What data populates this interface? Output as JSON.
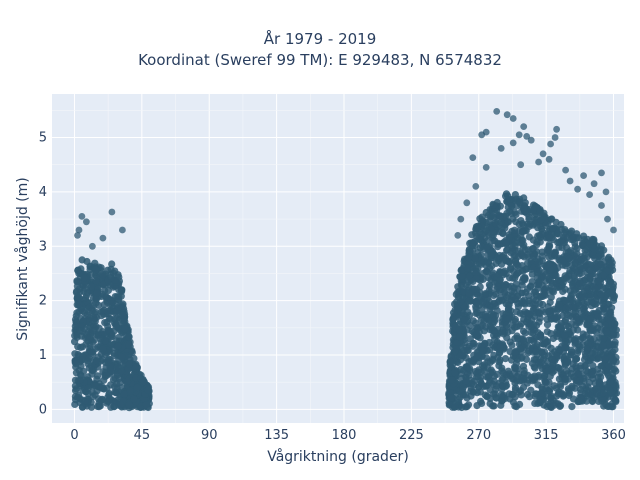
{
  "chart_data": {
    "type": "scatter",
    "title_lines": [
      "År 1979 - 2019",
      "Koordinat (Sweref 99 TM): E 929483, N 6574832"
    ],
    "xlabel": "Vågriktning (grader)",
    "ylabel": "Signifikant våghöjd (m)",
    "xlim": [
      -15,
      367
    ],
    "ylim": [
      -0.25,
      5.8
    ],
    "xticks": [
      0,
      45,
      90,
      135,
      180,
      225,
      270,
      315,
      360
    ],
    "yticks": [
      0,
      1,
      2,
      3,
      4,
      5
    ],
    "grid": true,
    "marker_color": "#2f5a73",
    "background_color": "#e5ecf6",
    "clusters": [
      {
        "x_range": [
          0,
          50
        ],
        "profile": [
          [
            0,
            2.4
          ],
          [
            5,
            2.8
          ],
          [
            10,
            2.7
          ],
          [
            15,
            2.7
          ],
          [
            20,
            2.6
          ],
          [
            25,
            2.7
          ],
          [
            30,
            2.5
          ],
          [
            35,
            1.6
          ],
          [
            40,
            0.9
          ],
          [
            45,
            0.6
          ],
          [
            50,
            0.4
          ]
        ]
      },
      {
        "x_range": [
          250,
          362
        ],
        "profile": [
          [
            250,
            0.5
          ],
          [
            253,
            1.8
          ],
          [
            258,
            2.6
          ],
          [
            265,
            3.2
          ],
          [
            270,
            3.5
          ],
          [
            280,
            3.8
          ],
          [
            290,
            4.0
          ],
          [
            300,
            3.9
          ],
          [
            310,
            3.7
          ],
          [
            320,
            3.5
          ],
          [
            330,
            3.3
          ],
          [
            340,
            3.2
          ],
          [
            350,
            3.1
          ],
          [
            360,
            2.7
          ],
          [
            362,
            1.5
          ]
        ]
      }
    ],
    "outliers": [
      [
        5,
        3.55
      ],
      [
        3,
        3.3
      ],
      [
        2,
        3.2
      ],
      [
        8,
        3.45
      ],
      [
        25,
        3.63
      ],
      [
        32,
        3.3
      ],
      [
        19,
        3.15
      ],
      [
        12,
        3.0
      ],
      [
        282,
        5.48
      ],
      [
        289,
        5.42
      ],
      [
        275,
        5.1
      ],
      [
        272,
        5.05
      ],
      [
        293,
        5.35
      ],
      [
        300,
        5.2
      ],
      [
        302,
        5.02
      ],
      [
        297,
        5.05
      ],
      [
        322,
        5.15
      ],
      [
        321,
        5.0
      ],
      [
        318,
        4.88
      ],
      [
        313,
        4.7
      ],
      [
        317,
        4.6
      ],
      [
        310,
        4.55
      ],
      [
        298,
        4.5
      ],
      [
        293,
        4.9
      ],
      [
        305,
        4.95
      ],
      [
        266,
        4.63
      ],
      [
        285,
        4.8
      ],
      [
        275,
        4.45
      ],
      [
        340,
        4.3
      ],
      [
        352,
        4.35
      ],
      [
        347,
        4.15
      ],
      [
        355,
        4.0
      ],
      [
        336,
        4.05
      ],
      [
        344,
        3.95
      ],
      [
        352,
        3.75
      ],
      [
        356,
        3.5
      ],
      [
        360,
        3.3
      ],
      [
        268,
        4.1
      ],
      [
        262,
        3.8
      ],
      [
        258,
        3.5
      ],
      [
        256,
        3.2
      ],
      [
        328,
        4.4
      ],
      [
        331,
        4.2
      ]
    ]
  }
}
